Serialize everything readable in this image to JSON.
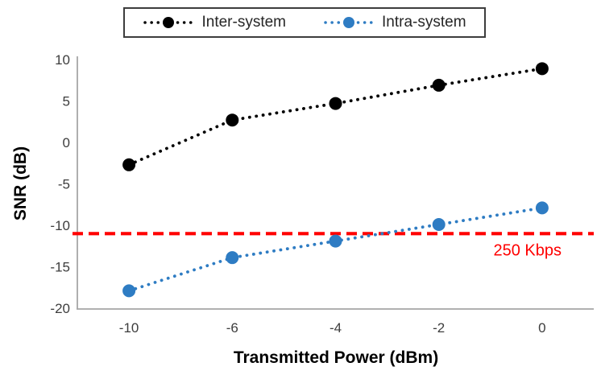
{
  "chart_data": {
    "type": "line",
    "title": "",
    "xlabel": "Transmitted Power (dBm)",
    "ylabel": "SNR (dB)",
    "categories": [
      "-10",
      "-6",
      "-4",
      "-2",
      "0"
    ],
    "y_tick_labels": [
      "-20",
      "-15",
      "-10",
      "-5",
      "0",
      "5",
      "10"
    ],
    "y_axis": {
      "min": -20,
      "max": 10,
      "step": 5
    },
    "series": [
      {
        "name": "Inter-system",
        "color": "#000000",
        "line_style": "dotted",
        "marker": "circle",
        "values": [
          -2.7,
          2.7,
          4.7,
          6.9,
          8.9
        ]
      },
      {
        "name": "Intra-system",
        "color": "#2e7cc3",
        "line_style": "dotted",
        "marker": "circle",
        "values": [
          -17.9,
          -13.9,
          -11.9,
          -9.9,
          -7.9
        ]
      }
    ],
    "threshold": {
      "value": -11,
      "label": "250 Kbps",
      "color": "#ff0000",
      "line_style": "dashed"
    },
    "axis_color": "#a6a6a6",
    "tick_color": "#3d3d3d",
    "grid": false,
    "legend_position": "top"
  }
}
